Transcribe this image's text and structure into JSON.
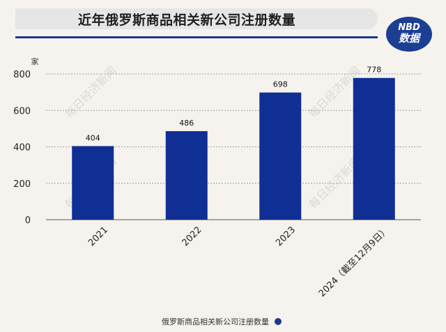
{
  "header": {
    "title": "近年俄罗斯商品相关新公司注册数量",
    "logo_top": "NBD",
    "logo_bottom": "数据"
  },
  "watermark": "每日经济新闻",
  "footer": {
    "caption": "俄罗斯商品相关新公司注册数量"
  },
  "colors": {
    "bar": "#0f2f95",
    "accent": "#1b3a8a",
    "grid": "#9aa0aa",
    "background": "#f6f3ee"
  },
  "chart_data": {
    "type": "bar",
    "title": "近年俄罗斯商品相关新公司注册数量",
    "ylabel": "家",
    "xlabel": "",
    "categories": [
      "2021",
      "2022",
      "2023",
      "2024（截至12月9日）"
    ],
    "values": [
      404,
      486,
      698,
      778
    ],
    "ylim": [
      0,
      800
    ],
    "yticks": [
      0,
      200,
      400,
      600,
      800
    ],
    "grid": true,
    "legend": "none"
  }
}
